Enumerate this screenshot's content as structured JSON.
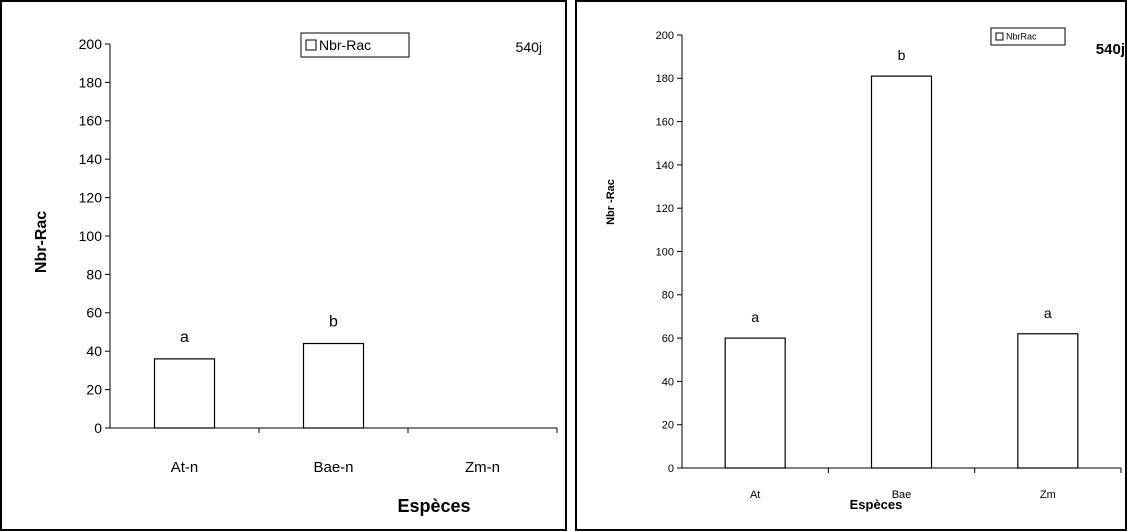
{
  "chart_data": [
    {
      "type": "bar",
      "categories": [
        "At-n",
        "Bae-n",
        "Zm-n"
      ],
      "values": [
        36,
        44,
        0
      ],
      "bar_letters": [
        "a",
        "b",
        ""
      ],
      "xlabel": "Espèces",
      "ylabel": "Nbr-Rac",
      "ylim": [
        0,
        200
      ],
      "yticks": [
        0,
        20,
        40,
        60,
        80,
        100,
        120,
        140,
        160,
        180,
        200
      ],
      "legend": {
        "label": "Nbr-Rac",
        "placement": "top-center"
      },
      "annotation": "540j",
      "grid": false
    },
    {
      "type": "bar",
      "categories": [
        "At",
        "Bae",
        "Zm"
      ],
      "values": [
        60,
        181,
        62
      ],
      "bar_letters": [
        "a",
        "b",
        "a"
      ],
      "xlabel": "Espèces",
      "ylabel": "Nbr -Rac",
      "ylim": [
        0,
        200
      ],
      "yticks": [
        0,
        20,
        40,
        60,
        80,
        100,
        120,
        140,
        160,
        180,
        200
      ],
      "legend": {
        "label": "NbrRac",
        "placement": "top-right"
      },
      "annotation": "540j",
      "grid": false
    }
  ]
}
